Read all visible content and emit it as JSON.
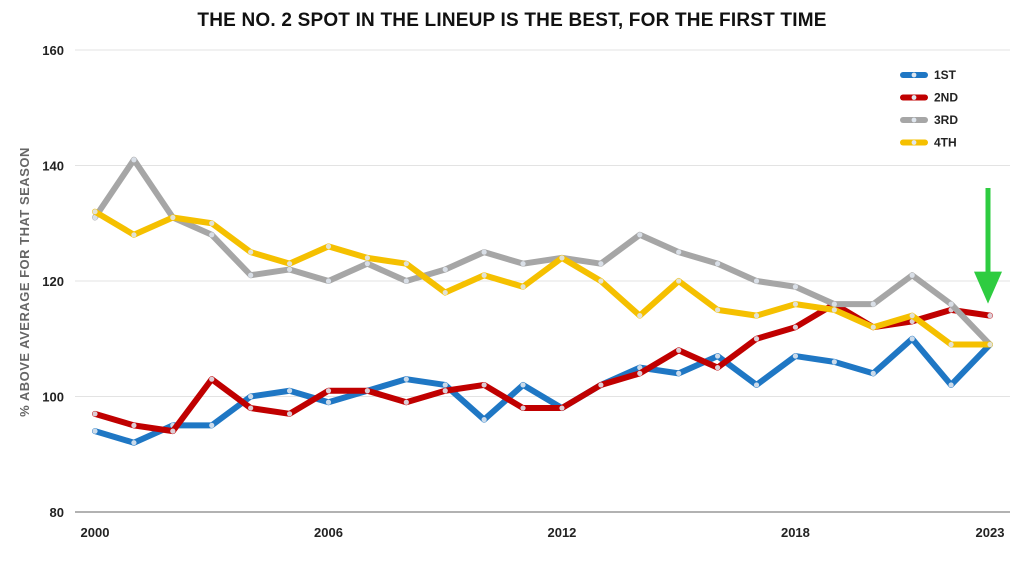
{
  "chart_data": {
    "type": "line",
    "title": "THE NO. 2 SPOT IN THE LINEUP IS THE BEST, FOR THE FIRST TIME",
    "xlabel": "",
    "ylabel": "% ABOVE AVERAGE FOR THAT SEASON",
    "ylim": [
      80,
      160
    ],
    "yticks": [
      80,
      100,
      120,
      140,
      160
    ],
    "xlim": [
      2000,
      2023
    ],
    "xticks": [
      2000,
      2006,
      2012,
      2018,
      2023
    ],
    "grid": "horizontal",
    "legend_position": "top-right",
    "x": [
      2000,
      2001,
      2002,
      2003,
      2004,
      2005,
      2006,
      2007,
      2008,
      2009,
      2010,
      2011,
      2012,
      2013,
      2014,
      2015,
      2016,
      2017,
      2018,
      2019,
      2020,
      2021,
      2022,
      2023
    ],
    "series": [
      {
        "name": "1ST",
        "color": "#1f77c4",
        "values": [
          94,
          92,
          95,
          95,
          100,
          101,
          99,
          101,
          103,
          102,
          96,
          102,
          98,
          102,
          105,
          104,
          107,
          102,
          107,
          106,
          104,
          110,
          102,
          109
        ]
      },
      {
        "name": "2ND",
        "color": "#c00000",
        "values": [
          97,
          95,
          94,
          103,
          98,
          97,
          101,
          101,
          99,
          101,
          102,
          98,
          98,
          102,
          104,
          108,
          105,
          110,
          112,
          116,
          112,
          113,
          115,
          114
        ]
      },
      {
        "name": "3RD",
        "color": "#a6a6a6",
        "values": [
          131,
          141,
          131,
          128,
          121,
          122,
          120,
          123,
          120,
          122,
          125,
          123,
          124,
          123,
          128,
          125,
          123,
          120,
          119,
          116,
          116,
          121,
          116,
          109
        ]
      },
      {
        "name": "4TH",
        "color": "#f5c000",
        "values": [
          132,
          128,
          131,
          130,
          125,
          123,
          126,
          124,
          123,
          118,
          121,
          119,
          124,
          120,
          114,
          120,
          115,
          114,
          116,
          115,
          112,
          114,
          109,
          109
        ]
      }
    ],
    "annotations": [
      {
        "type": "arrow",
        "color": "#2ecc40",
        "points_to_x": 2023,
        "points_to_series": "2ND"
      }
    ]
  }
}
